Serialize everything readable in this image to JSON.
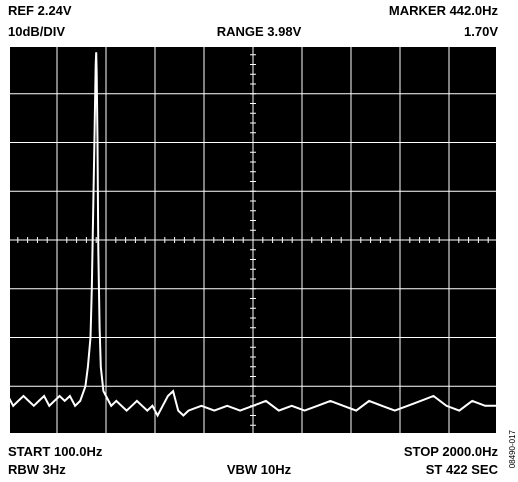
{
  "header": {
    "ref": "REF 2.24V",
    "marker": "MARKER 442.0Hz",
    "scale": "10dB/DIV",
    "range": "RANGE 3.98V",
    "marker_value": "1.70V"
  },
  "footer": {
    "start": "START 100.0Hz",
    "stop": "STOP 2000.0Hz",
    "rbw": "RBW 3Hz",
    "vbw": "VBW 10Hz",
    "sweep": "ST 422 SEC"
  },
  "side_id": "08490-017",
  "colors": {
    "screen": "#000000",
    "trace": "#ffffff",
    "grid": "#ffffff"
  },
  "chart_data": {
    "type": "line",
    "title": "",
    "xlabel": "",
    "ylabel": "",
    "xlim": [
      100,
      2000
    ],
    "grid": true,
    "grid_divisions": {
      "x": 10,
      "y": 8
    },
    "y_units": "dB below reference (10dB/DIV)",
    "ylim": [
      -80,
      0
    ],
    "series": [
      {
        "x": [
          100,
          120,
          140,
          160,
          180,
          200,
          220,
          240,
          260,
          280,
          300,
          320,
          340,
          360,
          380,
          400,
          410,
          420,
          425,
          430,
          435,
          438,
          440,
          442,
          444,
          447,
          450,
          455,
          460,
          470,
          480,
          500,
          520,
          540,
          560,
          580,
          600,
          620,
          640,
          660,
          680,
          700,
          720,
          740,
          760,
          780,
          800,
          850,
          900,
          950,
          1000,
          1050,
          1100,
          1150,
          1200,
          1250,
          1300,
          1350,
          1400,
          1450,
          1500,
          1550,
          1600,
          1650,
          1700,
          1750,
          1800,
          1850,
          1900,
          1950,
          2000
        ],
        "y": [
          -72,
          -74,
          -73,
          -72,
          -73,
          -74,
          -73,
          -72,
          -74,
          -73,
          -72,
          -73,
          -72,
          -74,
          -73,
          -70,
          -66,
          -60,
          -50,
          -35,
          -20,
          -10,
          -4,
          -1.5,
          -6,
          -20,
          -42,
          -58,
          -66,
          -71,
          -72,
          -74,
          -73,
          -74,
          -75,
          -74,
          -73,
          -74,
          -75,
          -74,
          -76,
          -74,
          -72,
          -71,
          -75,
          -76,
          -75,
          -74,
          -75,
          -74,
          -75,
          -74,
          -73,
          -75,
          -74,
          -75,
          -74,
          -73,
          -74,
          -75,
          -73,
          -74,
          -75,
          -74,
          -73,
          -72,
          -74,
          -75,
          -73,
          -74,
          -74
        ]
      }
    ]
  }
}
